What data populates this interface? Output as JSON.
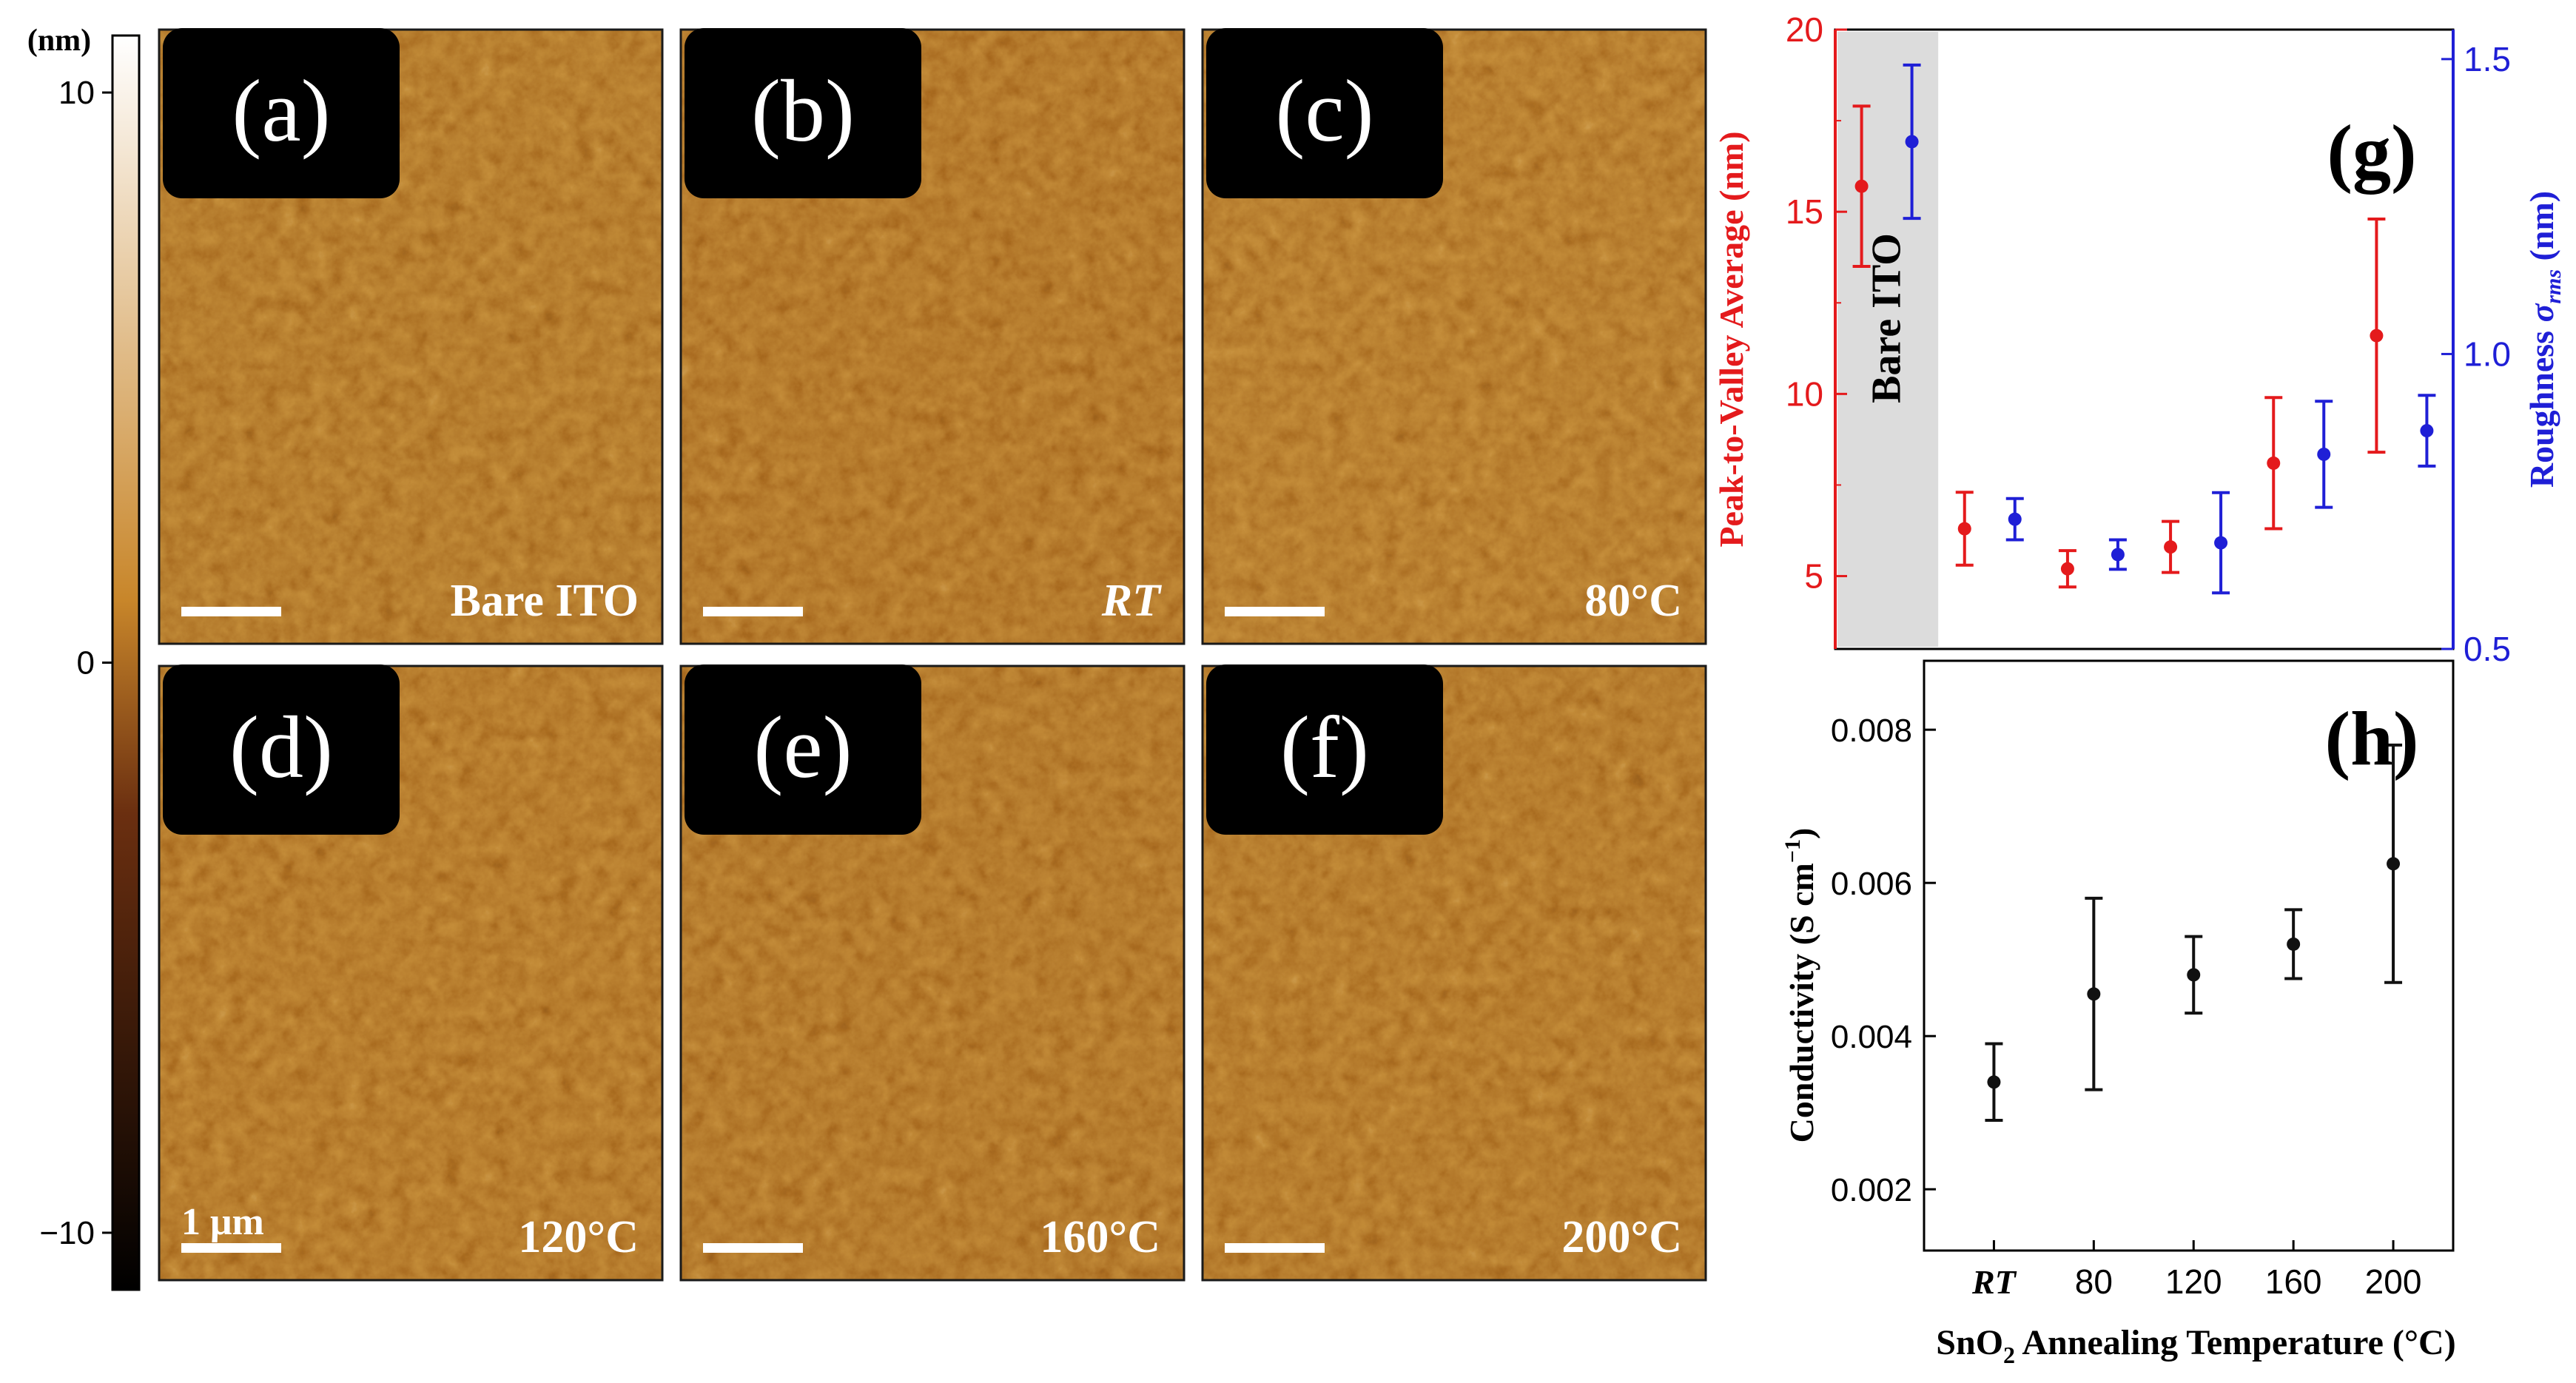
{
  "colorbar": {
    "unit": "(nm)",
    "ticks": [
      {
        "value": 10,
        "label": "10"
      },
      {
        "value": 0,
        "label": "0"
      },
      {
        "value": -10,
        "label": "−10"
      }
    ],
    "range": [
      -11,
      11
    ],
    "colors": {
      "top": "#ffffff",
      "mid": "#c8862a",
      "low": "#6b2f10",
      "bottom": "#000000"
    }
  },
  "afm_panels": [
    {
      "tag": "(a)",
      "sample": "Bare ITO",
      "italic": false,
      "scale_label": "",
      "tone": "#a86a1e"
    },
    {
      "tag": "(b)",
      "sample": "RT",
      "italic": true,
      "scale_label": "",
      "tone": "#a5631a"
    },
    {
      "tag": "(c)",
      "sample": "80°C",
      "italic": false,
      "scale_label": "",
      "tone": "#ad6e22"
    },
    {
      "tag": "(d)",
      "sample": "120°C",
      "italic": false,
      "scale_label": "1 μm",
      "tone": "#a9681c"
    },
    {
      "tag": "(e)",
      "sample": "160°C",
      "italic": false,
      "scale_label": "",
      "tone": "#a5641b"
    },
    {
      "tag": "(f)",
      "sample": "200°C",
      "italic": false,
      "scale_label": "",
      "tone": "#a8681d"
    }
  ],
  "chart_data": [
    {
      "type": "scatter",
      "panel": "(g)",
      "x_positions": [
        0,
        1,
        2,
        3,
        4,
        5
      ],
      "categories": [
        "Bare ITO",
        "RT",
        "80",
        "120",
        "160",
        "200"
      ],
      "shaded_category": "Bare ITO",
      "shaded_label": "Bare ITO",
      "ylabel_left": "Peak-to-Valley Average (nm)",
      "ylabel_right": "Roughness σrms (nm)",
      "ylabel_right_parts": {
        "main": "Roughness ",
        "sym": "σ",
        "sub": "rms",
        "unit": " (nm)"
      },
      "ylim_left": [
        3,
        20
      ],
      "yticks_left": [
        5,
        10,
        15,
        20
      ],
      "ylim_right": [
        0.5,
        1.55
      ],
      "yticks_right": [
        0.5,
        1.0,
        1.5
      ],
      "ytick_labels_right": [
        "0.5",
        "1.0",
        "1.5"
      ],
      "series": [
        {
          "name": "Peak-to-Valley Average",
          "axis": "left",
          "color": "#e41a1c",
          "values": [
            15.7,
            6.3,
            5.2,
            5.8,
            8.1,
            11.6
          ],
          "errors": [
            2.2,
            1.0,
            0.5,
            0.7,
            1.8,
            3.2
          ]
        },
        {
          "name": "Roughness σrms",
          "axis": "right",
          "color": "#1f1fd6",
          "values": [
            1.36,
            0.72,
            0.66,
            0.68,
            0.83,
            0.87
          ],
          "errors": [
            0.13,
            0.035,
            0.025,
            0.085,
            0.09,
            0.06
          ]
        }
      ]
    },
    {
      "type": "scatter",
      "panel": "(h)",
      "x_positions": [
        1,
        2,
        3,
        4,
        5
      ],
      "categories": [
        "RT",
        "80",
        "120",
        "160",
        "200"
      ],
      "xtick_italic": [
        "RT"
      ],
      "ylabel": "Conductivity (S cm⁻¹)",
      "ylabel_parts": {
        "main": "Conductivity (S cm",
        "sup": "−1",
        "end": ")"
      },
      "xlabel": "SnO2 Annealing Temperature (°C)",
      "xlabel_parts": {
        "pre": "SnO",
        "sub": "2",
        "post": " Annealing Temperature (°C)"
      },
      "ylim": [
        0.0012,
        0.0089
      ],
      "yticks": [
        0.002,
        0.004,
        0.006,
        0.008
      ],
      "ytick_labels": [
        "0.002",
        "0.004",
        "0.006",
        "0.008"
      ],
      "series": [
        {
          "name": "Conductivity",
          "color": "#111111",
          "values": [
            0.0034,
            0.00455,
            0.0048,
            0.0052,
            0.00625
          ],
          "errors": [
            0.0005,
            0.00125,
            0.0005,
            0.00045,
            0.00155
          ]
        }
      ]
    }
  ]
}
